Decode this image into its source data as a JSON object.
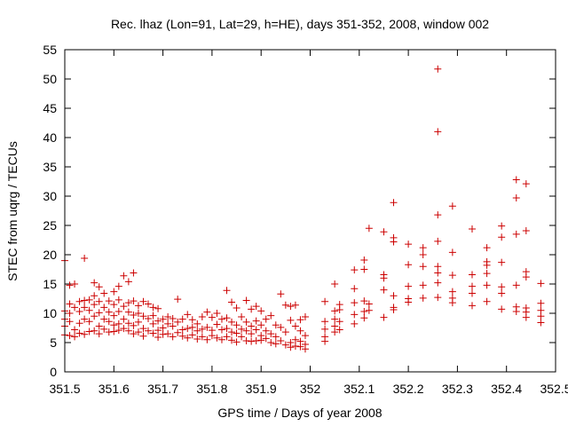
{
  "chart_data": {
    "type": "scatter",
    "title": "Rec. lhaz (Lon=91, Lat=29, h=HE), days 351-352, 2008, window 002",
    "xlabel": "GPS time / Days of year 2008",
    "ylabel": "STEC from uqrg / TECUs",
    "xlim": [
      351.5,
      352.5
    ],
    "ylim": [
      0,
      55
    ],
    "xticks": [
      "351.5",
      "351.6",
      "351.7",
      "351.8",
      "351.9",
      "352",
      "352.1",
      "352.2",
      "352.3",
      "352.4",
      "352.5"
    ],
    "yticks": [
      "0",
      "5",
      "10",
      "15",
      "20",
      "25",
      "30",
      "35",
      "40",
      "45",
      "50",
      "55"
    ],
    "marker": "+",
    "color": "#cc0000",
    "series": [
      {
        "name": "STEC",
        "points": [
          [
            351.5,
            19.0
          ],
          [
            351.5,
            10.4
          ],
          [
            351.5,
            9.0
          ],
          [
            351.5,
            7.8
          ],
          [
            351.5,
            6.3
          ],
          [
            351.51,
            14.8
          ],
          [
            351.51,
            11.6
          ],
          [
            351.51,
            10.0
          ],
          [
            351.51,
            8.6
          ],
          [
            351.51,
            6.2
          ],
          [
            351.52,
            15.0
          ],
          [
            351.52,
            11.0
          ],
          [
            351.52,
            7.2
          ],
          [
            351.52,
            6.0
          ],
          [
            351.53,
            12.0
          ],
          [
            351.53,
            10.3
          ],
          [
            351.53,
            8.3
          ],
          [
            351.53,
            6.6
          ],
          [
            351.54,
            19.4
          ],
          [
            351.54,
            12.2
          ],
          [
            351.54,
            11.0
          ],
          [
            351.54,
            9.0
          ],
          [
            351.54,
            6.4
          ],
          [
            351.55,
            12.3
          ],
          [
            351.55,
            10.5
          ],
          [
            351.55,
            8.6
          ],
          [
            351.55,
            6.9
          ],
          [
            351.56,
            15.2
          ],
          [
            351.56,
            13.0
          ],
          [
            351.56,
            11.5
          ],
          [
            351.56,
            9.5
          ],
          [
            351.56,
            7.0
          ],
          [
            351.57,
            14.5
          ],
          [
            351.57,
            12.0
          ],
          [
            351.57,
            10.1
          ],
          [
            351.57,
            7.8
          ],
          [
            351.57,
            6.5
          ],
          [
            351.58,
            13.4
          ],
          [
            351.58,
            11.0
          ],
          [
            351.58,
            9.0
          ],
          [
            351.58,
            7.3
          ],
          [
            351.59,
            12.1
          ],
          [
            351.59,
            10.2
          ],
          [
            351.59,
            8.6
          ],
          [
            351.59,
            6.8
          ],
          [
            351.6,
            13.7
          ],
          [
            351.6,
            11.5
          ],
          [
            351.6,
            9.6
          ],
          [
            351.6,
            8.0
          ],
          [
            351.6,
            6.9
          ],
          [
            351.61,
            14.6
          ],
          [
            351.61,
            12.3
          ],
          [
            351.61,
            10.3
          ],
          [
            351.61,
            8.2
          ],
          [
            351.61,
            7.1
          ],
          [
            351.62,
            16.4
          ],
          [
            351.62,
            11.2
          ],
          [
            351.62,
            9.0
          ],
          [
            351.62,
            7.4
          ],
          [
            351.63,
            15.4
          ],
          [
            351.63,
            11.8
          ],
          [
            351.63,
            10.2
          ],
          [
            351.63,
            8.3
          ],
          [
            351.63,
            7.0
          ],
          [
            351.64,
            16.9
          ],
          [
            351.64,
            12.1
          ],
          [
            351.64,
            9.7
          ],
          [
            351.64,
            7.9
          ],
          [
            351.64,
            6.5
          ],
          [
            351.65,
            11.3
          ],
          [
            351.65,
            10.0
          ],
          [
            351.65,
            8.5
          ],
          [
            351.65,
            6.8
          ],
          [
            351.66,
            12.0
          ],
          [
            351.66,
            9.5
          ],
          [
            351.66,
            7.4
          ],
          [
            351.66,
            6.1
          ],
          [
            351.67,
            11.6
          ],
          [
            351.67,
            9.1
          ],
          [
            351.67,
            7.0
          ],
          [
            351.68,
            11.0
          ],
          [
            351.68,
            9.6
          ],
          [
            351.68,
            8.2
          ],
          [
            351.68,
            6.6
          ],
          [
            351.69,
            10.8
          ],
          [
            351.69,
            8.7
          ],
          [
            351.69,
            7.1
          ],
          [
            351.69,
            5.9
          ],
          [
            351.7,
            9.0
          ],
          [
            351.7,
            7.5
          ],
          [
            351.7,
            6.4
          ],
          [
            351.71,
            9.4
          ],
          [
            351.71,
            8.2
          ],
          [
            351.71,
            6.5
          ],
          [
            351.72,
            9.1
          ],
          [
            351.72,
            7.8
          ],
          [
            351.72,
            6.0
          ],
          [
            351.73,
            12.4
          ],
          [
            351.73,
            8.5
          ],
          [
            351.73,
            6.7
          ],
          [
            351.74,
            9.0
          ],
          [
            351.74,
            7.2
          ],
          [
            351.74,
            6.1
          ],
          [
            351.75,
            9.8
          ],
          [
            351.75,
            7.4
          ],
          [
            351.75,
            5.8
          ],
          [
            351.76,
            8.9
          ],
          [
            351.76,
            7.6
          ],
          [
            351.76,
            6.3
          ],
          [
            351.77,
            8.2
          ],
          [
            351.77,
            7.0
          ],
          [
            351.77,
            5.6
          ],
          [
            351.78,
            9.4
          ],
          [
            351.78,
            7.3
          ],
          [
            351.78,
            6.0
          ],
          [
            351.79,
            10.2
          ],
          [
            351.79,
            7.6
          ],
          [
            351.79,
            5.5
          ],
          [
            351.8,
            9.3
          ],
          [
            351.8,
            7.1
          ],
          [
            351.8,
            6.2
          ],
          [
            351.81,
            10.0
          ],
          [
            351.81,
            8.1
          ],
          [
            351.81,
            5.8
          ],
          [
            351.82,
            9.0
          ],
          [
            351.82,
            7.2
          ],
          [
            351.82,
            5.5
          ],
          [
            351.83,
            13.9
          ],
          [
            351.83,
            9.2
          ],
          [
            351.83,
            7.4
          ],
          [
            351.83,
            6.0
          ],
          [
            351.84,
            11.9
          ],
          [
            351.84,
            8.5
          ],
          [
            351.84,
            6.8
          ],
          [
            351.84,
            5.4
          ],
          [
            351.85,
            10.9
          ],
          [
            351.85,
            8.0
          ],
          [
            351.85,
            6.6
          ],
          [
            351.85,
            5.1
          ],
          [
            351.86,
            9.4
          ],
          [
            351.86,
            7.3
          ],
          [
            351.86,
            6.0
          ],
          [
            351.87,
            12.2
          ],
          [
            351.87,
            8.5
          ],
          [
            351.87,
            7.0
          ],
          [
            351.87,
            5.3
          ],
          [
            351.88,
            10.7
          ],
          [
            351.88,
            7.8
          ],
          [
            351.88,
            6.5
          ],
          [
            351.88,
            5.2
          ],
          [
            351.89,
            11.2
          ],
          [
            351.89,
            8.7
          ],
          [
            351.89,
            7.2
          ],
          [
            351.89,
            5.3
          ],
          [
            351.9,
            10.4
          ],
          [
            351.9,
            8.0
          ],
          [
            351.9,
            6.2
          ],
          [
            351.9,
            5.4
          ],
          [
            351.91,
            9.0
          ],
          [
            351.91,
            7.0
          ],
          [
            351.91,
            5.7
          ],
          [
            351.92,
            9.6
          ],
          [
            351.92,
            6.5
          ],
          [
            351.92,
            5.0
          ],
          [
            351.93,
            8.0
          ],
          [
            351.93,
            6.0
          ],
          [
            351.93,
            4.8
          ],
          [
            351.94,
            13.3
          ],
          [
            351.94,
            7.6
          ],
          [
            351.94,
            5.3
          ],
          [
            351.95,
            11.4
          ],
          [
            351.95,
            6.8
          ],
          [
            351.95,
            4.6
          ],
          [
            351.96,
            11.2
          ],
          [
            351.96,
            8.8
          ],
          [
            351.96,
            5.0
          ],
          [
            351.96,
            4.2
          ],
          [
            351.97,
            11.4
          ],
          [
            351.97,
            7.8
          ],
          [
            351.97,
            5.5
          ],
          [
            351.97,
            4.4
          ],
          [
            351.98,
            8.9
          ],
          [
            351.98,
            7.0
          ],
          [
            351.98,
            5.2
          ],
          [
            351.98,
            4.3
          ],
          [
            351.99,
            9.4
          ],
          [
            351.99,
            6.2
          ],
          [
            351.99,
            4.7
          ],
          [
            351.99,
            3.9
          ],
          [
            352.03,
            12.0
          ],
          [
            352.03,
            8.6
          ],
          [
            352.03,
            7.3
          ],
          [
            352.03,
            6.0
          ],
          [
            352.03,
            5.2
          ],
          [
            352.05,
            15.0
          ],
          [
            352.05,
            10.4
          ],
          [
            352.05,
            9.0
          ],
          [
            352.05,
            7.8
          ],
          [
            352.05,
            6.8
          ],
          [
            352.06,
            11.5
          ],
          [
            352.06,
            10.6
          ],
          [
            352.06,
            8.6
          ],
          [
            352.06,
            7.2
          ],
          [
            352.09,
            17.4
          ],
          [
            352.09,
            14.2
          ],
          [
            352.09,
            11.8
          ],
          [
            352.09,
            9.8
          ],
          [
            352.09,
            8.2
          ],
          [
            352.11,
            19.1
          ],
          [
            352.11,
            17.5
          ],
          [
            352.11,
            12.1
          ],
          [
            352.11,
            10.3
          ],
          [
            352.11,
            9.2
          ],
          [
            352.12,
            24.5
          ],
          [
            352.12,
            11.6
          ],
          [
            352.12,
            10.5
          ],
          [
            352.15,
            23.9
          ],
          [
            352.15,
            16.6
          ],
          [
            352.15,
            16.0
          ],
          [
            352.15,
            14.0
          ],
          [
            352.15,
            9.3
          ],
          [
            352.17,
            28.9
          ],
          [
            352.17,
            22.9
          ],
          [
            352.17,
            22.2
          ],
          [
            352.17,
            13.0
          ],
          [
            352.17,
            11.0
          ],
          [
            352.17,
            10.6
          ],
          [
            352.2,
            21.8
          ],
          [
            352.2,
            18.3
          ],
          [
            352.2,
            14.6
          ],
          [
            352.2,
            12.5
          ],
          [
            352.2,
            11.9
          ],
          [
            352.23,
            21.2
          ],
          [
            352.23,
            20.0
          ],
          [
            352.23,
            18.0
          ],
          [
            352.23,
            14.8
          ],
          [
            352.23,
            12.6
          ],
          [
            352.26,
            51.7
          ],
          [
            352.26,
            41.0
          ],
          [
            352.26,
            26.8
          ],
          [
            352.26,
            22.3
          ],
          [
            352.26,
            18.0
          ],
          [
            352.26,
            16.9
          ],
          [
            352.26,
            15.2
          ],
          [
            352.26,
            12.7
          ],
          [
            352.29,
            28.3
          ],
          [
            352.29,
            20.4
          ],
          [
            352.29,
            16.5
          ],
          [
            352.29,
            13.7
          ],
          [
            352.29,
            12.6
          ],
          [
            352.29,
            11.8
          ],
          [
            352.33,
            24.4
          ],
          [
            352.33,
            16.6
          ],
          [
            352.33,
            14.6
          ],
          [
            352.33,
            13.4
          ],
          [
            352.33,
            11.3
          ],
          [
            352.36,
            21.2
          ],
          [
            352.36,
            18.8
          ],
          [
            352.36,
            18.2
          ],
          [
            352.36,
            16.8
          ],
          [
            352.36,
            14.8
          ],
          [
            352.36,
            12.0
          ],
          [
            352.39,
            24.9
          ],
          [
            352.39,
            23.0
          ],
          [
            352.39,
            18.7
          ],
          [
            352.39,
            14.5
          ],
          [
            352.39,
            13.4
          ],
          [
            352.39,
            10.7
          ],
          [
            352.42,
            32.8
          ],
          [
            352.42,
            29.7
          ],
          [
            352.42,
            23.5
          ],
          [
            352.42,
            14.8
          ],
          [
            352.42,
            11.1
          ],
          [
            352.42,
            10.3
          ],
          [
            352.44,
            32.1
          ],
          [
            352.44,
            24.1
          ],
          [
            352.44,
            17.1
          ],
          [
            352.44,
            16.2
          ],
          [
            352.44,
            10.9
          ],
          [
            352.44,
            10.2
          ],
          [
            352.44,
            9.3
          ],
          [
            352.47,
            15.1
          ],
          [
            352.47,
            11.7
          ],
          [
            352.47,
            10.5
          ],
          [
            352.47,
            9.5
          ],
          [
            352.47,
            8.4
          ]
        ]
      }
    ]
  }
}
